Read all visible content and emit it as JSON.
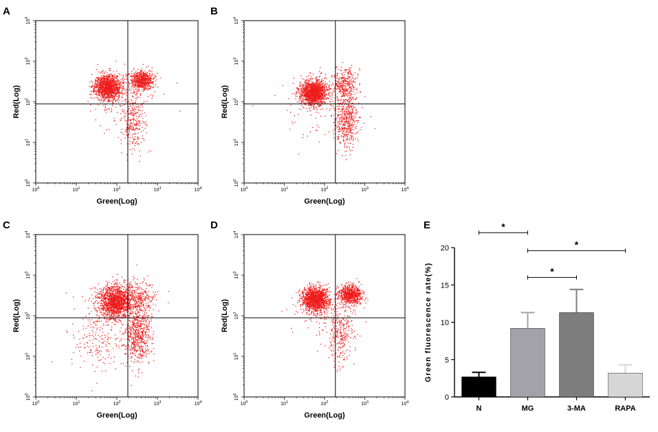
{
  "chart_data": [
    {
      "panel": "A",
      "type": "scatter",
      "xlabel": "Green(Log)",
      "ylabel": "Red(Log)",
      "xscale": "log",
      "yscale": "log",
      "xlim_exp": [
        0,
        4
      ],
      "ylim_exp": [
        0,
        4
      ],
      "x_ticks": [
        "10^0",
        "10^1",
        "10^2",
        "10^3",
        "10^4"
      ],
      "y_ticks": [
        "10^0",
        "10^1",
        "10^2",
        "10^3",
        "10^4"
      ],
      "gate_x_exp": 2.27,
      "gate_y_exp": 1.95,
      "seed": 11,
      "populations": [
        {
          "cx": 1.78,
          "cy": 2.36,
          "sx": 0.16,
          "sy": 0.15,
          "n": 1400
        },
        {
          "cx": 2.62,
          "cy": 2.52,
          "sx": 0.14,
          "sy": 0.12,
          "n": 700
        },
        {
          "cx": 2.4,
          "cy": 1.45,
          "sx": 0.16,
          "sy": 0.35,
          "n": 260
        },
        {
          "cx": 2.1,
          "cy": 2.0,
          "sx": 0.4,
          "sy": 0.35,
          "n": 140
        }
      ]
    },
    {
      "panel": "B",
      "type": "scatter",
      "xlabel": "Green(Log)",
      "ylabel": "Red(Log)",
      "xscale": "log",
      "yscale": "log",
      "xlim_exp": [
        0,
        4
      ],
      "ylim_exp": [
        0,
        4
      ],
      "x_ticks": [
        "10^0",
        "10^1",
        "10^2",
        "10^3",
        "10^4"
      ],
      "y_ticks": [
        "10^0",
        "10^1",
        "10^2",
        "10^3",
        "10^4"
      ],
      "gate_x_exp": 2.27,
      "gate_y_exp": 1.95,
      "seed": 23,
      "populations": [
        {
          "cx": 1.72,
          "cy": 2.22,
          "sx": 0.16,
          "sy": 0.15,
          "n": 1500
        },
        {
          "cx": 2.55,
          "cy": 1.55,
          "sx": 0.14,
          "sy": 0.3,
          "n": 450
        },
        {
          "cx": 2.5,
          "cy": 2.45,
          "sx": 0.15,
          "sy": 0.2,
          "n": 300
        },
        {
          "cx": 2.0,
          "cy": 1.9,
          "sx": 0.45,
          "sy": 0.45,
          "n": 150
        }
      ]
    },
    {
      "panel": "C",
      "type": "scatter",
      "xlabel": "Green(Log)",
      "ylabel": "Red(Log)",
      "xscale": "log",
      "yscale": "log",
      "xlim_exp": [
        0,
        4
      ],
      "ylim_exp": [
        0,
        4
      ],
      "x_ticks": [
        "10^0",
        "10^1",
        "10^2",
        "10^3",
        "10^4"
      ],
      "y_ticks": [
        "10^0",
        "10^1",
        "10^2",
        "10^3",
        "10^4"
      ],
      "gate_x_exp": 2.27,
      "gate_y_exp": 1.95,
      "seed": 37,
      "populations": [
        {
          "cx": 1.95,
          "cy": 2.35,
          "sx": 0.2,
          "sy": 0.2,
          "n": 1500
        },
        {
          "cx": 2.5,
          "cy": 1.5,
          "sx": 0.16,
          "sy": 0.35,
          "n": 600
        },
        {
          "cx": 2.5,
          "cy": 2.4,
          "sx": 0.2,
          "sy": 0.22,
          "n": 350
        },
        {
          "cx": 1.5,
          "cy": 1.5,
          "sx": 0.35,
          "sy": 0.4,
          "n": 220
        }
      ]
    },
    {
      "panel": "D",
      "type": "scatter",
      "xlabel": "Green(Log)",
      "ylabel": "Red(Log)",
      "xscale": "log",
      "yscale": "log",
      "xlim_exp": [
        0,
        4
      ],
      "ylim_exp": [
        0,
        4
      ],
      "x_ticks": [
        "10^0",
        "10^1",
        "10^2",
        "10^3",
        "10^4"
      ],
      "y_ticks": [
        "10^0",
        "10^1",
        "10^2",
        "10^3",
        "10^4"
      ],
      "gate_x_exp": 2.27,
      "gate_y_exp": 1.95,
      "seed": 53,
      "populations": [
        {
          "cx": 1.78,
          "cy": 2.4,
          "sx": 0.17,
          "sy": 0.15,
          "n": 1400
        },
        {
          "cx": 2.65,
          "cy": 2.52,
          "sx": 0.14,
          "sy": 0.12,
          "n": 750
        },
        {
          "cx": 2.4,
          "cy": 1.45,
          "sx": 0.16,
          "sy": 0.35,
          "n": 250
        },
        {
          "cx": 2.1,
          "cy": 2.0,
          "sx": 0.4,
          "sy": 0.35,
          "n": 120
        }
      ]
    },
    {
      "panel": "E",
      "type": "bar",
      "title": "",
      "xlabel": "",
      "ylabel": "Green fluorescence rate(%)",
      "categories": [
        "N",
        "MG",
        "3-MA",
        "RAPA"
      ],
      "values": [
        2.7,
        9.2,
        11.3,
        3.2
      ],
      "errors": [
        0.6,
        2.1,
        3.1,
        1.1
      ],
      "colors": [
        "#000000",
        "#a2a2a8",
        "#7d7d7d",
        "#d6d6d6"
      ],
      "ylim": [
        0,
        20
      ],
      "yticks": [
        "0",
        "5",
        "10",
        "15",
        "20"
      ],
      "significance": [
        {
          "from": 0,
          "to": 1,
          "y": 22.0,
          "label": "*"
        },
        {
          "from": 1,
          "to": 3,
          "y": 19.6,
          "label": "*"
        },
        {
          "from": 1,
          "to": 2,
          "y": 16.0,
          "label": "*"
        }
      ]
    }
  ],
  "panel_letters": [
    "A",
    "B",
    "C",
    "D",
    "E"
  ],
  "colors": {
    "dots": "#ee1c1c",
    "axis": "#000000"
  }
}
